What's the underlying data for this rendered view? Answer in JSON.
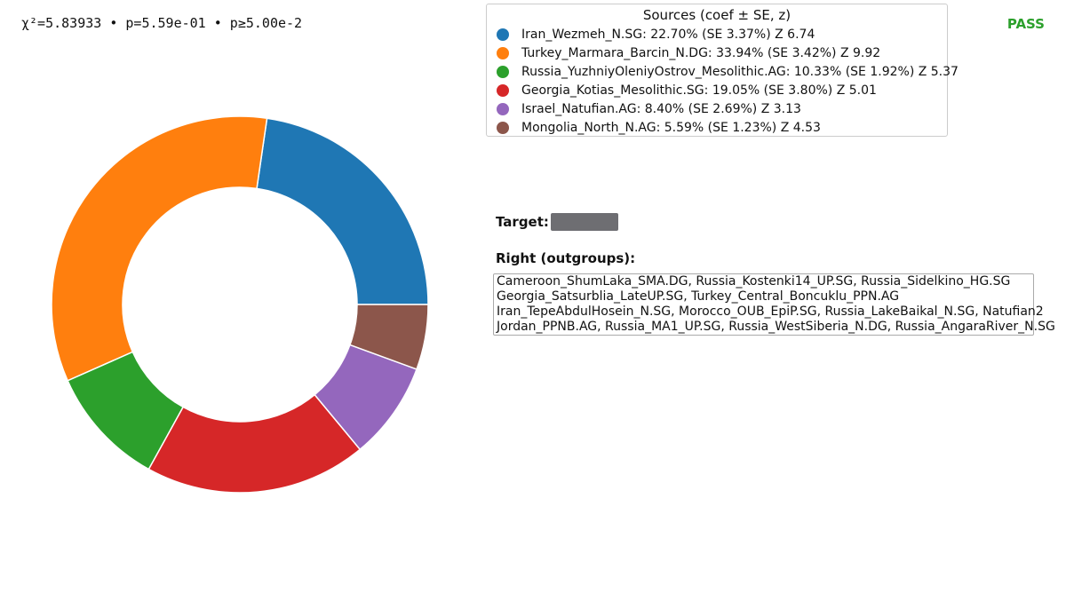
{
  "stats": {
    "text": "χ²=5.83933 • p=5.59e-01 • p≥5.00e-2"
  },
  "status": {
    "label": "PASS",
    "color": "#2ca02c"
  },
  "chart_data": {
    "type": "pie",
    "variant": "donut",
    "legend_title": "Sources (coef ± SE, z)",
    "legend_placement": "top-right",
    "slices": [
      {
        "name": "Iran_Wezmeh_N.SG",
        "value": 22.7,
        "se": 3.37,
        "z": 6.74,
        "color": "#1f77b4",
        "label": "Iran_Wezmeh_N.SG: 22.70% (SE 3.37%)  Z 6.74"
      },
      {
        "name": "Turkey_Marmara_Barcin_N.DG",
        "value": 33.94,
        "se": 3.42,
        "z": 9.92,
        "color": "#ff7f0e",
        "label": "Turkey_Marmara_Barcin_N.DG: 33.94% (SE 3.42%)  Z 9.92"
      },
      {
        "name": "Russia_YuzhniyOleniyOstrov_Mesolithic.AG",
        "value": 10.33,
        "se": 1.92,
        "z": 5.37,
        "color": "#2ca02c",
        "label": "Russia_YuzhniyOleniyOstrov_Mesolithic.AG: 10.33% (SE 1.92%)  Z 5.37"
      },
      {
        "name": "Georgia_Kotias_Mesolithic.SG",
        "value": 19.05,
        "se": 3.8,
        "z": 5.01,
        "color": "#d62728",
        "label": "Georgia_Kotias_Mesolithic.SG: 19.05% (SE 3.80%)  Z 5.01"
      },
      {
        "name": "Israel_Natufian.AG",
        "value": 8.4,
        "se": 2.69,
        "z": 3.13,
        "color": "#9467bd",
        "label": "Israel_Natufian.AG: 8.40% (SE 2.69%)  Z 3.13"
      },
      {
        "name": "Mongolia_North_N.AG",
        "value": 5.59,
        "se": 1.23,
        "z": 4.53,
        "color": "#8c564b",
        "label": "Mongolia_North_N.AG: 5.59% (SE 1.23%)  Z 4.53"
      }
    ]
  },
  "target": {
    "label": "Target:"
  },
  "right": {
    "title": "Right (outgroups):",
    "lines": [
      "Cameroon_ShumLaka_SMA.DG, Russia_Kostenki14_UP.SG, Russia_Sidelkino_HG.SG",
      "Georgia_Satsurblia_LateUP.SG, Turkey_Central_Boncuklu_PPN.AG",
      "Iran_TepeAbdulHosein_N.SG, Morocco_OUB_EpiP.SG, Russia_LakeBaikal_N.SG, Natufian2",
      "Jordan_PPNB.AG, Russia_MA1_UP.SG, Russia_WestSiberia_N.DG, Russia_AngaraRiver_N.SG"
    ]
  }
}
